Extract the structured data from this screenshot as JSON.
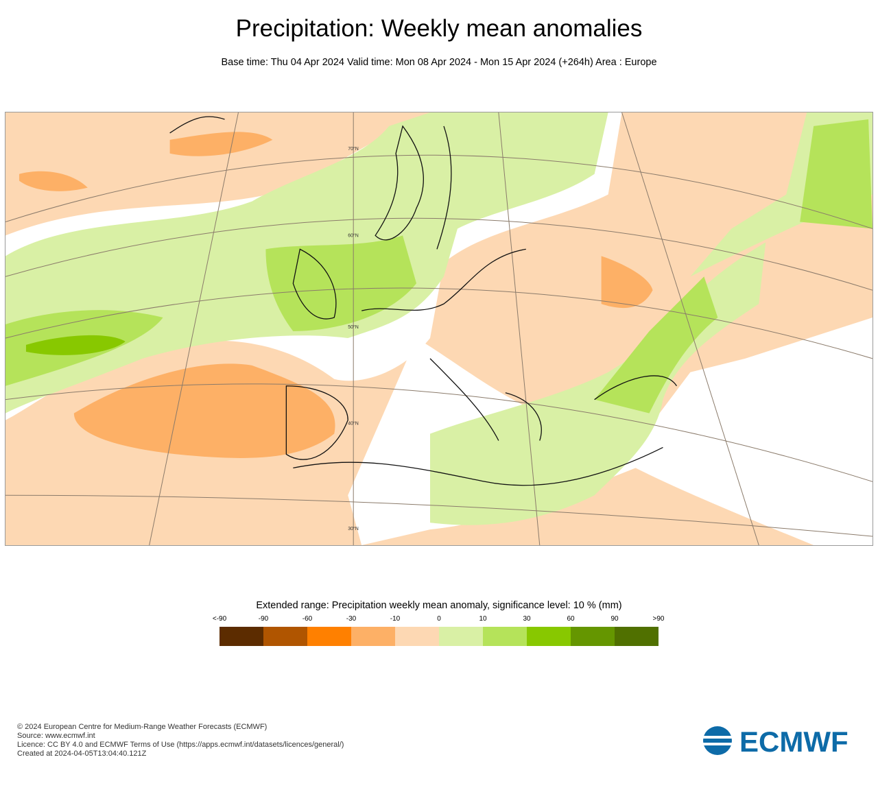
{
  "header": {
    "title": "Precipitation: Weekly mean anomalies",
    "subtitle": "Base time: Thu 04 Apr 2024 Valid time: Mon 08 Apr 2024 - Mon 15 Apr 2024 (+264h) Area : Europe"
  },
  "map": {
    "area": "Europe",
    "latitude_labels": [
      "70°N",
      "60°N",
      "50°N",
      "40°N",
      "30°N"
    ]
  },
  "legend": {
    "title": "Extended range: Precipitation weekly mean anomaly, significance level: 10 % (mm)",
    "ticks": [
      "<-90",
      "-90",
      "-60",
      "-30",
      "-10",
      "0",
      "10",
      "30",
      "60",
      "90",
      ">90"
    ],
    "colors": [
      "#5c2c00",
      "#b05500",
      "#ff8000",
      "#fdb066",
      "#fdd8b3",
      "#d9f0a5",
      "#b5e35a",
      "#88c800",
      "#659600",
      "#507000"
    ]
  },
  "footer": {
    "lines": [
      "© 2024 European Centre for Medium-Range Weather Forecasts (ECMWF)",
      "Source: www.ecmwf.int",
      "Licence: CC BY 4.0 and ECMWF Terms of Use (https://apps.ecmwf.int/datasets/licences/general/)",
      "Created at 2024-04-05T13:04:40.121Z"
    ],
    "logo_text": "ECMWF",
    "logo_color": "#0d6ba8"
  }
}
